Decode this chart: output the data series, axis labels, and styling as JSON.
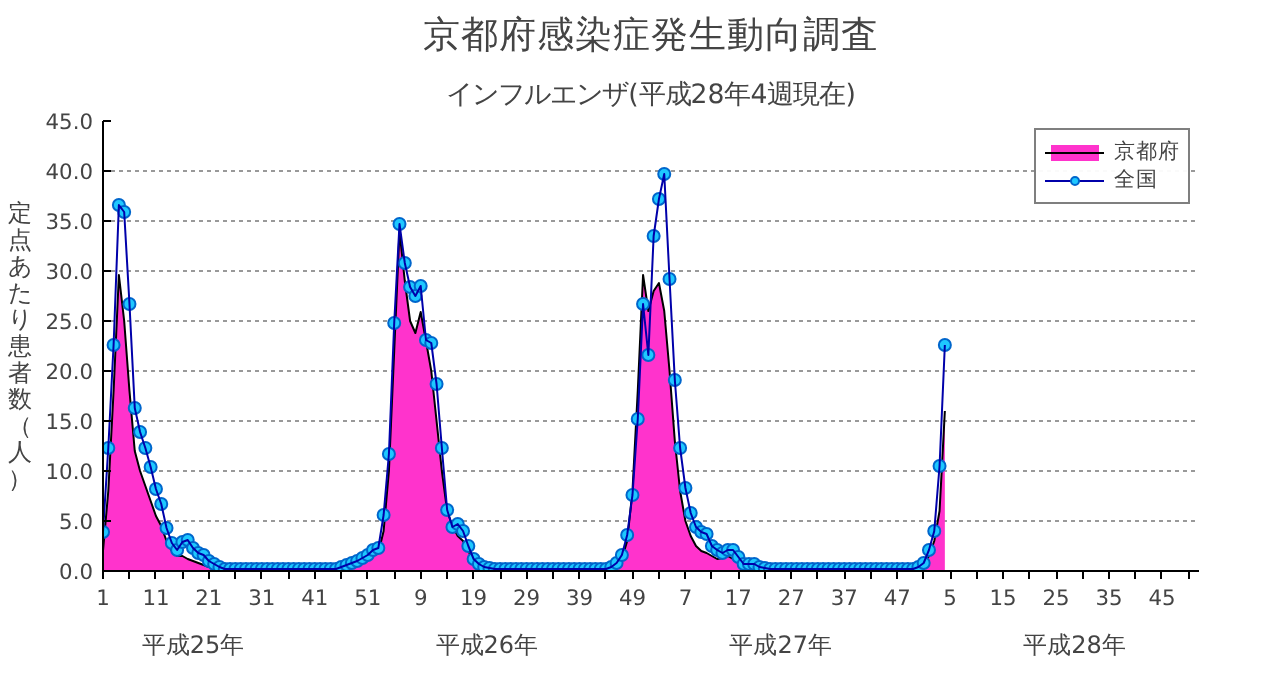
{
  "chart_data": {
    "type": "line",
    "title": "京都府感染症発生動向調査",
    "subtitle": "インフルエンザ(平成28年4週現在)",
    "ylabel": "定点あたり患者数（人）",
    "categories": [
      "1",
      null,
      null,
      null,
      null,
      null,
      null,
      null,
      null,
      null,
      "11",
      null,
      null,
      null,
      null,
      null,
      null,
      null,
      null,
      null,
      "21",
      null,
      null,
      null,
      null,
      null,
      null,
      null,
      null,
      null,
      "31",
      null,
      null,
      null,
      null,
      null,
      null,
      null,
      null,
      null,
      "41",
      null,
      null,
      null,
      null,
      null,
      null,
      null,
      null,
      null,
      "51",
      null,
      null,
      null,
      null,
      null,
      null,
      null,
      null,
      null,
      "9",
      null,
      null,
      null,
      null,
      null,
      null,
      null,
      null,
      null,
      "19",
      null,
      null,
      null,
      null,
      null,
      null,
      null,
      null,
      null,
      "29",
      null,
      null,
      null,
      null,
      null,
      null,
      null,
      null,
      null,
      "39",
      null,
      null,
      null,
      null,
      null,
      null,
      null,
      null,
      null,
      "49",
      null,
      null,
      null,
      null,
      null,
      null,
      null,
      null,
      null,
      "7",
      null,
      null,
      null,
      null,
      null,
      null,
      null,
      null,
      null,
      "17",
      null,
      null,
      null,
      null,
      null,
      null,
      null,
      null,
      null,
      "27",
      null,
      null,
      null,
      null,
      null,
      null,
      null,
      null,
      null,
      "37",
      null,
      null,
      null,
      null,
      null,
      null,
      null,
      null,
      null,
      "47",
      null,
      null,
      null,
      null,
      null,
      null,
      null,
      null,
      null,
      "5",
      null,
      null,
      null,
      null,
      null,
      null,
      null,
      null,
      null,
      "15",
      null,
      null,
      null,
      null,
      null,
      null,
      null,
      null,
      null,
      "25",
      null,
      null,
      null,
      null,
      null,
      null,
      null,
      null,
      null,
      "35",
      null,
      null,
      null,
      null,
      null,
      null,
      null,
      null,
      null,
      "45",
      null,
      null,
      null,
      null,
      null,
      null,
      null
    ],
    "series": [
      {
        "name": "京都府",
        "type": "area",
        "color": "#ff33cc",
        "values": [
          2,
          8,
          18,
          29.6,
          25,
          18,
          12,
          10,
          8.5,
          7,
          5.5,
          4.5,
          3,
          2,
          1.5,
          1.5,
          1.2,
          1,
          0.8,
          0.6,
          0.4,
          0.3,
          0.2,
          0.1,
          0.1,
          0.1,
          0.1,
          0.1,
          0.1,
          0.1,
          0.1,
          0.1,
          0.1,
          0.1,
          0.1,
          0.1,
          0.1,
          0.1,
          0.1,
          0.1,
          0.1,
          0.1,
          0.1,
          0.1,
          0.1,
          0.2,
          0.3,
          0.5,
          0.7,
          0.9,
          1.2,
          1.5,
          1.8,
          4,
          10,
          22,
          34,
          29,
          25,
          23.8,
          25.9,
          23,
          20,
          15,
          10,
          6,
          4.5,
          3.5,
          3,
          2,
          1,
          0.6,
          0.3,
          0.2,
          0.1,
          0.1,
          0.1,
          0.1,
          0.1,
          0.1,
          0.1,
          0.1,
          0.1,
          0.1,
          0.1,
          0.1,
          0.1,
          0.1,
          0.1,
          0.1,
          0.1,
          0.1,
          0.1,
          0.1,
          0.1,
          0.1,
          0.3,
          0.6,
          1.2,
          3,
          8,
          18,
          29.6,
          26,
          28,
          28.8,
          26,
          20,
          13,
          8,
          5,
          3.5,
          2.5,
          2,
          1.8,
          1.5,
          1.2,
          1.3,
          1.5,
          1.2,
          0.8,
          0.5,
          0.4,
          0.3,
          0.2,
          0.2,
          0.1,
          0.1,
          0.1,
          0.1,
          0.1,
          0.1,
          0.1,
          0.1,
          0.1,
          0.1,
          0.1,
          0.1,
          0.1,
          0.1,
          0.1,
          0.1,
          0.1,
          0.1,
          0.1,
          0.1,
          0.1,
          0.1,
          0.1,
          0.1,
          0.1,
          0.1,
          0.1,
          0.1,
          0.3,
          0.6,
          1.5,
          3,
          6,
          16,
          null,
          null,
          null,
          null,
          null,
          null,
          null,
          null,
          null,
          null,
          null,
          null,
          null,
          null,
          null,
          null,
          null,
          null,
          null,
          null,
          null,
          null,
          null,
          null,
          null,
          null,
          null,
          null,
          null,
          null,
          null,
          null,
          null,
          null,
          null,
          null,
          null,
          null,
          null,
          null,
          null,
          null,
          null,
          null,
          null,
          null,
          null,
          null
        ]
      },
      {
        "name": "全国",
        "color": "#1ec8ff",
        "marker": "circle",
        "values": [
          3.9,
          12.3,
          22.6,
          36.6,
          35.9,
          26.7,
          16.3,
          13.9,
          12.3,
          10.4,
          8.2,
          6.7,
          4.3,
          2.8,
          2.1,
          2.9,
          3.1,
          2.3,
          1.8,
          1.6,
          1.0,
          0.7,
          0.4,
          0.2,
          0.2,
          0.2,
          0.2,
          0.2,
          0.2,
          0.2,
          0.2,
          0.2,
          0.2,
          0.2,
          0.2,
          0.2,
          0.2,
          0.2,
          0.2,
          0.2,
          0.2,
          0.2,
          0.2,
          0.2,
          0.2,
          0.4,
          0.6,
          0.8,
          1.0,
          1.3,
          1.6,
          2.1,
          2.3,
          5.6,
          11.7,
          24.8,
          34.7,
          30.8,
          28.4,
          27.5,
          28.5,
          23.1,
          22.8,
          18.7,
          12.3,
          6.1,
          4.4,
          4.7,
          4.0,
          2.5,
          1.2,
          0.7,
          0.4,
          0.3,
          0.2,
          0.2,
          0.2,
          0.2,
          0.2,
          0.2,
          0.2,
          0.2,
          0.2,
          0.2,
          0.2,
          0.2,
          0.2,
          0.2,
          0.2,
          0.2,
          0.2,
          0.2,
          0.2,
          0.2,
          0.2,
          0.2,
          0.4,
          0.8,
          1.6,
          3.6,
          7.6,
          15.2,
          26.7,
          21.6,
          33.5,
          37.2,
          39.7,
          29.2,
          19.1,
          12.3,
          8.3,
          5.8,
          4.4,
          3.9,
          3.7,
          2.5,
          2.1,
          1.8,
          2.1,
          2.1,
          1.4,
          0.7,
          0.7,
          0.7,
          0.4,
          0.3,
          0.2,
          0.2,
          0.2,
          0.2,
          0.2,
          0.2,
          0.2,
          0.2,
          0.2,
          0.2,
          0.2,
          0.2,
          0.2,
          0.2,
          0.2,
          0.2,
          0.2,
          0.2,
          0.2,
          0.2,
          0.2,
          0.2,
          0.2,
          0.2,
          0.2,
          0.2,
          0.2,
          0.2,
          0.4,
          0.8,
          2.1,
          4.0,
          10.5,
          22.6,
          null,
          null,
          null,
          null,
          null,
          null,
          null,
          null,
          null,
          null,
          null,
          null,
          null,
          null,
          null,
          null,
          null,
          null,
          null,
          null,
          null,
          null,
          null,
          null,
          null,
          null,
          null,
          null,
          null,
          null,
          null,
          null,
          null,
          null,
          null,
          null,
          null,
          null,
          null,
          null,
          null,
          null,
          null,
          null,
          null,
          null,
          null,
          null
        ]
      }
    ],
    "ylim": [
      0,
      45
    ],
    "yticks": [
      {
        "value": 0,
        "label": "0.0"
      },
      {
        "value": 5,
        "label": "5.0"
      },
      {
        "value": 10,
        "label": "10.0"
      },
      {
        "value": 15,
        "label": "15.0"
      },
      {
        "value": 20,
        "label": "20.0"
      },
      {
        "value": 25,
        "label": "25.0"
      },
      {
        "value": 30,
        "label": "30.0"
      },
      {
        "value": 35,
        "label": "35.0"
      },
      {
        "value": 40,
        "label": "40.0"
      },
      {
        "value": 45,
        "label": "45.0"
      }
    ],
    "annotations": [
      "平成25年",
      "平成26年",
      "平成27年",
      "平成28年"
    ],
    "grid": "y",
    "legend": "top right"
  }
}
